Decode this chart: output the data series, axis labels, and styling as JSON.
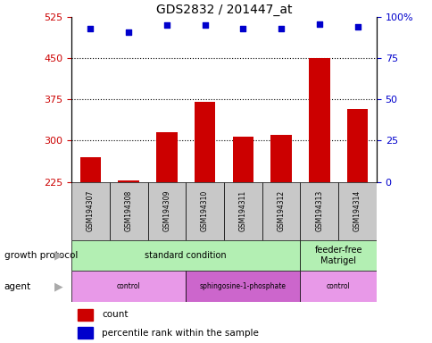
{
  "title": "GDS2832 / 201447_at",
  "samples": [
    "GSM194307",
    "GSM194308",
    "GSM194309",
    "GSM194310",
    "GSM194311",
    "GSM194312",
    "GSM194313",
    "GSM194314"
  ],
  "count_values": [
    270,
    228,
    315,
    370,
    308,
    310,
    450,
    358
  ],
  "percentile_values": [
    93,
    91,
    95,
    95,
    93,
    93,
    96,
    94
  ],
  "ylim_left": [
    225,
    525
  ],
  "ylim_right": [
    0,
    100
  ],
  "yticks_left": [
    225,
    300,
    375,
    450,
    525
  ],
  "yticks_right": [
    0,
    25,
    50,
    75,
    100
  ],
  "hlines": [
    300,
    375,
    450
  ],
  "bar_color": "#cc0000",
  "dot_color": "#0000cc",
  "bar_width": 0.55,
  "gp_groups": [
    {
      "label": "standard condition",
      "start": 0,
      "end": 5,
      "color": "#b3efb3"
    },
    {
      "label": "feeder-free\nMatrigel",
      "start": 6,
      "end": 7,
      "color": "#b3efb3"
    }
  ],
  "agent_groups": [
    {
      "label": "control",
      "start": 0,
      "end": 2,
      "color": "#e899e8"
    },
    {
      "label": "sphingosine-1-phosphate",
      "start": 3,
      "end": 5,
      "color": "#cc66cc"
    },
    {
      "label": "control",
      "start": 6,
      "end": 7,
      "color": "#e899e8"
    }
  ],
  "legend_count_label": "count",
  "legend_pct_label": "percentile rank within the sample",
  "left_label_growth": "growth protocol",
  "left_label_agent": "agent",
  "axis_color_left": "#cc0000",
  "axis_color_right": "#0000cc",
  "sample_box_color": "#c8c8c8",
  "fig_width": 4.85,
  "fig_height": 3.84,
  "fig_dpi": 100
}
